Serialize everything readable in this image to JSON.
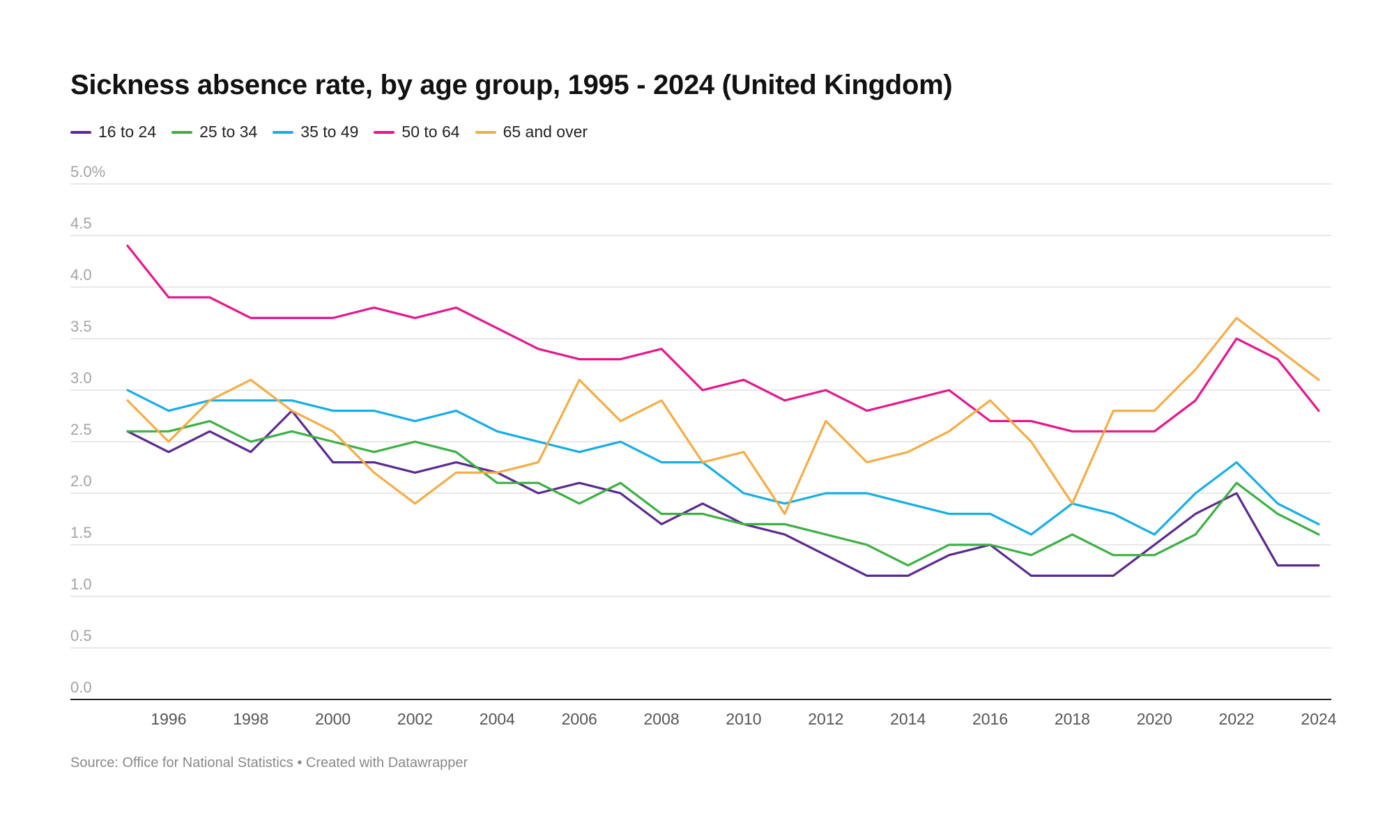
{
  "title": "Sickness absence rate, by age group, 1995 - 2024 (United Kingdom)",
  "source": "Source: Office for National Statistics • Created with Datawrapper",
  "chart_data": {
    "type": "line",
    "x": [
      1995,
      1996,
      1997,
      1998,
      1999,
      2000,
      2001,
      2002,
      2003,
      2004,
      2005,
      2006,
      2007,
      2008,
      2009,
      2010,
      2011,
      2012,
      2013,
      2014,
      2015,
      2016,
      2017,
      2018,
      2019,
      2020,
      2021,
      2022,
      2023,
      2024
    ],
    "xticks": [
      1996,
      1998,
      2000,
      2002,
      2004,
      2006,
      2008,
      2010,
      2012,
      2014,
      2016,
      2018,
      2020,
      2022,
      2024
    ],
    "xtick_labels": [
      "1996",
      "1998",
      "2000",
      "2002",
      "2004",
      "2006",
      "2008",
      "2010",
      "2012",
      "2014",
      "2016",
      "2018",
      "2020",
      "2022",
      "2024"
    ],
    "ylim": [
      0,
      5
    ],
    "yticks": [
      0,
      0.5,
      1,
      1.5,
      2,
      2.5,
      3,
      3.5,
      4,
      4.5,
      5
    ],
    "ytick_labels": [
      "0.0",
      "0.5",
      "1.0",
      "1.5",
      "2.0",
      "2.5",
      "3.0",
      "3.5",
      "4.0",
      "4.5",
      "5.0%"
    ],
    "grid": true,
    "legend": "top-left",
    "series": [
      {
        "name": "16 to 24",
        "color": "#5c2a8f",
        "values": [
          2.6,
          2.4,
          2.6,
          2.4,
          2.8,
          2.3,
          2.3,
          2.2,
          2.3,
          2.2,
          2.0,
          2.1,
          2.0,
          1.7,
          1.9,
          1.7,
          1.6,
          1.4,
          1.2,
          1.2,
          1.4,
          1.5,
          1.2,
          1.2,
          1.2,
          1.5,
          1.8,
          2.0,
          1.3,
          1.3
        ]
      },
      {
        "name": "25 to 34",
        "color": "#3cb043",
        "values": [
          2.6,
          2.6,
          2.7,
          2.5,
          2.6,
          2.5,
          2.4,
          2.5,
          2.4,
          2.1,
          2.1,
          1.9,
          2.1,
          1.8,
          1.8,
          1.7,
          1.7,
          1.6,
          1.5,
          1.3,
          1.5,
          1.5,
          1.4,
          1.6,
          1.4,
          1.4,
          1.6,
          2.1,
          1.8,
          1.6
        ]
      },
      {
        "name": "35 to 49",
        "color": "#15aee6",
        "values": [
          3.0,
          2.8,
          2.9,
          2.9,
          2.9,
          2.8,
          2.8,
          2.7,
          2.8,
          2.6,
          2.5,
          2.4,
          2.5,
          2.3,
          2.3,
          2.0,
          1.9,
          2.0,
          2.0,
          1.9,
          1.8,
          1.8,
          1.6,
          1.9,
          1.8,
          1.6,
          2.0,
          2.3,
          1.9,
          1.7
        ]
      },
      {
        "name": "50 to 64",
        "color": "#e6168c",
        "values": [
          4.4,
          3.9,
          3.9,
          3.7,
          3.7,
          3.7,
          3.8,
          3.7,
          3.8,
          3.6,
          3.4,
          3.3,
          3.3,
          3.4,
          3.0,
          3.1,
          2.9,
          3.0,
          2.8,
          2.9,
          3.0,
          2.7,
          2.7,
          2.6,
          2.6,
          2.6,
          2.9,
          3.5,
          3.3,
          2.8
        ]
      },
      {
        "name": "65 and over",
        "color": "#f5ad45",
        "values": [
          2.9,
          2.5,
          2.9,
          3.1,
          2.8,
          2.6,
          2.2,
          1.9,
          2.2,
          2.2,
          2.3,
          3.1,
          2.7,
          2.9,
          2.3,
          2.4,
          1.8,
          2.7,
          2.3,
          2.4,
          2.6,
          2.9,
          2.5,
          1.9,
          2.8,
          2.8,
          3.2,
          3.7,
          3.4,
          3.1
        ]
      }
    ]
  }
}
